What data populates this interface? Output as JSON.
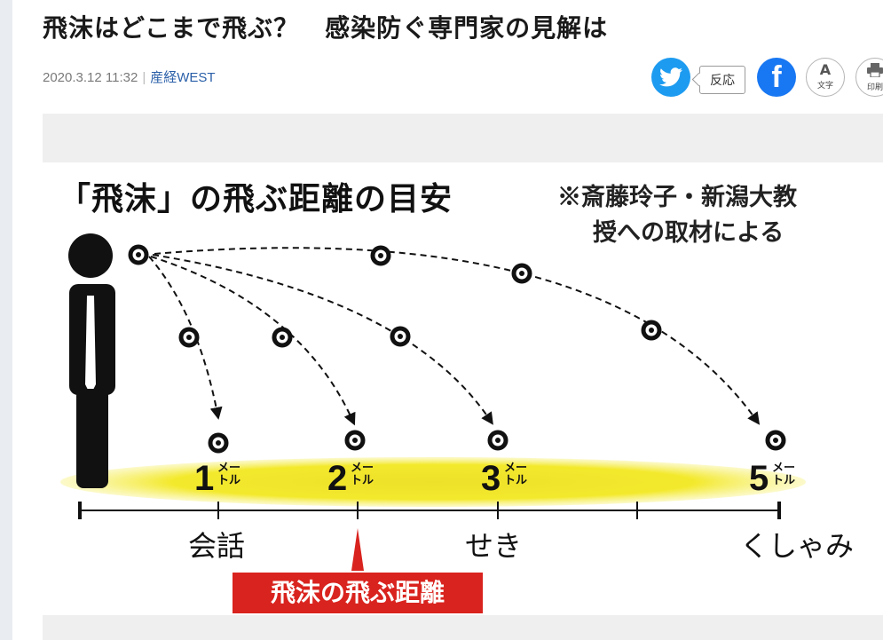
{
  "article": {
    "title": "飛沫はどこまで飛ぶ？　感染防ぐ専門家の見解は",
    "date": "2020.3.12 11:32",
    "separator": "|",
    "source": "産経WEST"
  },
  "share": {
    "reaction_label": "反応",
    "facebook_glyph": "f",
    "font_size": {
      "glyph": "A",
      "label": "文字"
    },
    "print": {
      "label": "印刷"
    },
    "colors": {
      "twitter": "#1d9bf0",
      "facebook": "#1877f2"
    }
  },
  "figure": {
    "title": "「飛沫」の飛ぶ距離の目安",
    "note_line1": "※斎藤玲子・新潟大教",
    "note_line2": "授への取材による",
    "distances": [
      {
        "number": "1",
        "unit_top": "メー",
        "unit_bottom": "トル"
      },
      {
        "number": "2",
        "unit_top": "メー",
        "unit_bottom": "トル"
      },
      {
        "number": "3",
        "unit_top": "メー",
        "unit_bottom": "トル"
      },
      {
        "number": "5",
        "unit_top": "メー",
        "unit_bottom": "トル"
      }
    ],
    "categories": [
      "会話",
      "せき",
      "くしゃみ"
    ],
    "label": "飛沫の飛ぶ距離",
    "colors": {
      "highlight": "#f3e92c",
      "label_bg": "#d9231e"
    }
  }
}
